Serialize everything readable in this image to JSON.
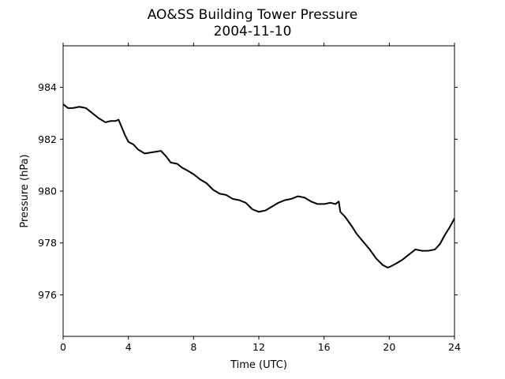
{
  "chart_data": {
    "type": "line",
    "title": "AO&SS Building Tower Pressure",
    "subtitle": "2004-11-10",
    "xlabel": "Time (UTC)",
    "ylabel": "Pressure (hPa)",
    "xlim": [
      0,
      24
    ],
    "ylim": [
      974.4,
      985.6
    ],
    "xticks": [
      0,
      4,
      8,
      12,
      16,
      20,
      24
    ],
    "yticks": [
      976,
      978,
      980,
      982,
      984
    ],
    "grid": false,
    "line_color": "#000000",
    "series": [
      {
        "x": [
          0,
          0.3,
          0.6,
          1.0,
          1.4,
          1.8,
          2.2,
          2.6,
          2.9,
          3.2,
          3.4,
          3.6,
          3.8,
          4.0,
          4.3,
          4.6,
          5.0,
          5.5,
          6.0,
          6.3,
          6.6,
          7.0,
          7.3,
          7.6,
          8.0,
          8.4,
          8.8,
          9.2,
          9.6,
          10.0,
          10.4,
          10.8,
          11.2,
          11.6,
          12.0,
          12.4,
          12.8,
          13.2,
          13.6,
          14.0,
          14.4,
          14.8,
          15.2,
          15.6,
          16.0,
          16.4,
          16.7,
          16.9,
          17.0,
          17.3,
          17.7,
          18.0,
          18.4,
          18.8,
          19.2,
          19.6,
          19.9,
          20.1,
          20.4,
          20.8,
          21.2,
          21.6,
          22.0,
          22.4,
          22.8,
          23.1,
          23.4,
          23.7,
          24.0
        ],
        "y": [
          983.35,
          983.2,
          983.2,
          983.25,
          983.2,
          983.0,
          982.8,
          982.65,
          982.7,
          982.7,
          982.75,
          982.45,
          982.15,
          981.9,
          981.8,
          981.6,
          981.45,
          981.5,
          981.55,
          981.35,
          981.1,
          981.05,
          980.9,
          980.8,
          980.65,
          980.45,
          980.3,
          980.05,
          979.9,
          979.85,
          979.7,
          979.65,
          979.55,
          979.3,
          979.2,
          979.25,
          979.4,
          979.55,
          979.65,
          979.7,
          979.8,
          979.75,
          979.6,
          979.5,
          979.5,
          979.55,
          979.5,
          979.6,
          979.2,
          979.0,
          978.65,
          978.35,
          978.05,
          977.75,
          977.4,
          977.15,
          977.05,
          977.1,
          977.2,
          977.35,
          977.55,
          977.75,
          977.7,
          977.7,
          977.75,
          977.95,
          978.3,
          978.6,
          978.95
        ]
      }
    ]
  }
}
